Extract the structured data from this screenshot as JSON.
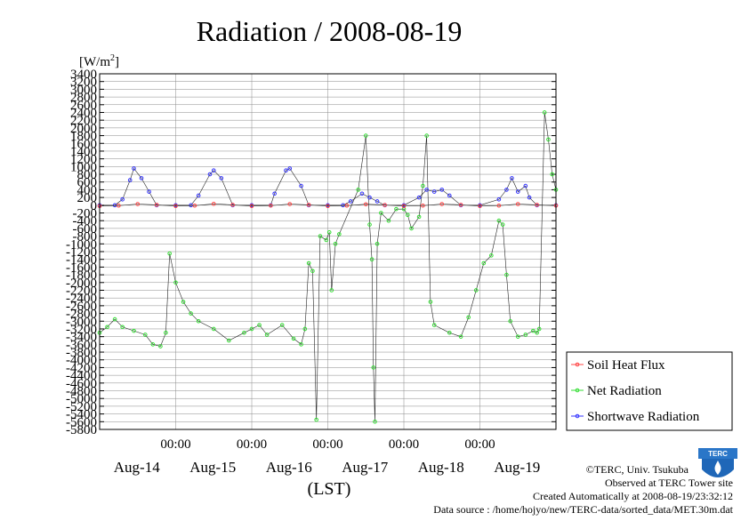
{
  "header": {
    "title": "Radiation / 2008-08-19",
    "unit_label": "[W/m",
    "unit_sup": "2",
    "unit_close": "]"
  },
  "footer": {
    "copyright": "©TERC, Univ. Tsukuba",
    "observed": "Observed at TERC Tower site",
    "created": "Created Automatically at 2008-08-19/23:32:12",
    "source": "Data source : /home/hojyo/new/TERC-data/sorted_data/MET.30m.dat",
    "logo_text": "TERC"
  },
  "colors": {
    "soil": "#ff4444",
    "net": "#33dd33",
    "shortwave": "#3333ff",
    "grid": "#888888"
  },
  "chart_data": {
    "type": "line",
    "title": "Radiation / 2008-08-19",
    "ylabel": "[W/m2]",
    "xlabel": "(LST)",
    "ylim": [
      -5800,
      3400
    ],
    "ytick_step": 200,
    "yticks_labeled": [
      3400,
      3200,
      3000,
      2800,
      2600,
      2400,
      2200,
      2000,
      1800,
      1600,
      1400,
      1200,
      1000,
      800,
      600,
      400,
      200,
      0,
      -200,
      -400,
      -600,
      -800,
      -1000,
      -1200,
      -1400,
      -1600,
      -1800,
      -2000,
      -2200,
      -2400,
      -2600,
      -2800,
      -3000,
      -3200,
      -3400,
      -3600,
      -3800,
      -4000,
      -4200,
      -4400,
      -4600,
      -4800,
      -5000,
      -5200,
      -5400,
      -5600,
      -5800
    ],
    "xlim": [
      0,
      6
    ],
    "time_ticks": [
      {
        "x": 1,
        "label": "00:00"
      },
      {
        "x": 2,
        "label": "00:00"
      },
      {
        "x": 3,
        "label": "00:00"
      },
      {
        "x": 4,
        "label": "00:00"
      },
      {
        "x": 5,
        "label": "00:00"
      }
    ],
    "date_labels": [
      {
        "x": 0.5,
        "label": "Aug-14"
      },
      {
        "x": 1.5,
        "label": "Aug-15"
      },
      {
        "x": 2.5,
        "label": "Aug-16"
      },
      {
        "x": 3.5,
        "label": "Aug-17"
      },
      {
        "x": 4.5,
        "label": "Aug-18"
      },
      {
        "x": 5.5,
        "label": "Aug-19"
      }
    ],
    "grid": true,
    "legend_position": "bottom-right",
    "series": [
      {
        "name": "Soil Heat Flux",
        "color": "#ff4444",
        "points": [
          [
            0,
            -20
          ],
          [
            0.25,
            -10
          ],
          [
            0.5,
            30
          ],
          [
            0.75,
            10
          ],
          [
            1,
            -20
          ],
          [
            1.25,
            -10
          ],
          [
            1.5,
            35
          ],
          [
            1.75,
            10
          ],
          [
            2,
            -20
          ],
          [
            2.25,
            -10
          ],
          [
            2.5,
            30
          ],
          [
            2.75,
            10
          ],
          [
            3,
            -20
          ],
          [
            3.25,
            -10
          ],
          [
            3.5,
            25
          ],
          [
            3.75,
            5
          ],
          [
            4,
            -20
          ],
          [
            4.25,
            -10
          ],
          [
            4.5,
            30
          ],
          [
            4.75,
            10
          ],
          [
            5,
            -20
          ],
          [
            5.25,
            -10
          ],
          [
            5.5,
            30
          ],
          [
            5.75,
            10
          ],
          [
            6,
            -10
          ]
        ]
      },
      {
        "name": "Net Radiation",
        "color": "#33dd33",
        "points": [
          [
            0,
            -3300
          ],
          [
            0.1,
            -3150
          ],
          [
            0.2,
            -2950
          ],
          [
            0.3,
            -3150
          ],
          [
            0.45,
            -3250
          ],
          [
            0.6,
            -3350
          ],
          [
            0.7,
            -3600
          ],
          [
            0.8,
            -3650
          ],
          [
            0.87,
            -3300
          ],
          [
            0.92,
            -1250
          ],
          [
            1.0,
            -2000
          ],
          [
            1.1,
            -2500
          ],
          [
            1.2,
            -2800
          ],
          [
            1.3,
            -3000
          ],
          [
            1.5,
            -3200
          ],
          [
            1.7,
            -3500
          ],
          [
            1.9,
            -3300
          ],
          [
            2.0,
            -3200
          ],
          [
            2.1,
            -3100
          ],
          [
            2.2,
            -3350
          ],
          [
            2.4,
            -3100
          ],
          [
            2.55,
            -3450
          ],
          [
            2.65,
            -3600
          ],
          [
            2.7,
            -3200
          ],
          [
            2.75,
            -1500
          ],
          [
            2.8,
            -1700
          ],
          [
            2.85,
            -5550
          ],
          [
            2.9,
            -800
          ],
          [
            2.98,
            -900
          ],
          [
            3.02,
            -700
          ],
          [
            3.05,
            -2200
          ],
          [
            3.1,
            -1000
          ],
          [
            3.15,
            -750
          ],
          [
            3.4,
            400
          ],
          [
            3.5,
            1800
          ],
          [
            3.55,
            -500
          ],
          [
            3.58,
            -1400
          ],
          [
            3.6,
            -4200
          ],
          [
            3.62,
            -5600
          ],
          [
            3.65,
            -1000
          ],
          [
            3.7,
            -200
          ],
          [
            3.8,
            -400
          ],
          [
            3.9,
            -100
          ],
          [
            4.0,
            -100
          ],
          [
            4.05,
            -250
          ],
          [
            4.1,
            -600
          ],
          [
            4.2,
            -300
          ],
          [
            4.25,
            500
          ],
          [
            4.3,
            1800
          ],
          [
            4.35,
            -2500
          ],
          [
            4.4,
            -3100
          ],
          [
            4.6,
            -3300
          ],
          [
            4.75,
            -3400
          ],
          [
            4.85,
            -2900
          ],
          [
            4.95,
            -2200
          ],
          [
            5.05,
            -1500
          ],
          [
            5.15,
            -1300
          ],
          [
            5.25,
            -400
          ],
          [
            5.3,
            -500
          ],
          [
            5.35,
            -1800
          ],
          [
            5.4,
            -3000
          ],
          [
            5.5,
            -3400
          ],
          [
            5.6,
            -3350
          ],
          [
            5.7,
            -3250
          ],
          [
            5.75,
            -3300
          ],
          [
            5.78,
            -3200
          ],
          [
            5.85,
            2400
          ],
          [
            5.9,
            1700
          ],
          [
            5.95,
            800
          ],
          [
            6.0,
            400
          ]
        ]
      },
      {
        "name": "Shortwave Radiation",
        "color": "#3333ff",
        "points": [
          [
            0,
            0
          ],
          [
            0.2,
            0
          ],
          [
            0.3,
            150
          ],
          [
            0.4,
            650
          ],
          [
            0.45,
            950
          ],
          [
            0.55,
            700
          ],
          [
            0.65,
            350
          ],
          [
            0.75,
            0
          ],
          [
            1,
            0
          ],
          [
            1.2,
            0
          ],
          [
            1.3,
            250
          ],
          [
            1.45,
            800
          ],
          [
            1.5,
            900
          ],
          [
            1.6,
            700
          ],
          [
            1.75,
            0
          ],
          [
            2,
            0
          ],
          [
            2.25,
            0
          ],
          [
            2.3,
            300
          ],
          [
            2.45,
            900
          ],
          [
            2.5,
            950
          ],
          [
            2.65,
            500
          ],
          [
            2.75,
            0
          ],
          [
            3,
            0
          ],
          [
            3.2,
            0
          ],
          [
            3.3,
            100
          ],
          [
            3.45,
            300
          ],
          [
            3.55,
            200
          ],
          [
            3.65,
            100
          ],
          [
            3.75,
            0
          ],
          [
            4,
            0
          ],
          [
            4.2,
            200
          ],
          [
            4.3,
            400
          ],
          [
            4.4,
            350
          ],
          [
            4.5,
            400
          ],
          [
            4.6,
            250
          ],
          [
            4.75,
            0
          ],
          [
            5,
            0
          ],
          [
            5.25,
            150
          ],
          [
            5.35,
            400
          ],
          [
            5.42,
            700
          ],
          [
            5.5,
            350
          ],
          [
            5.6,
            500
          ],
          [
            5.65,
            200
          ],
          [
            5.75,
            0
          ],
          [
            6,
            0
          ]
        ]
      }
    ]
  }
}
